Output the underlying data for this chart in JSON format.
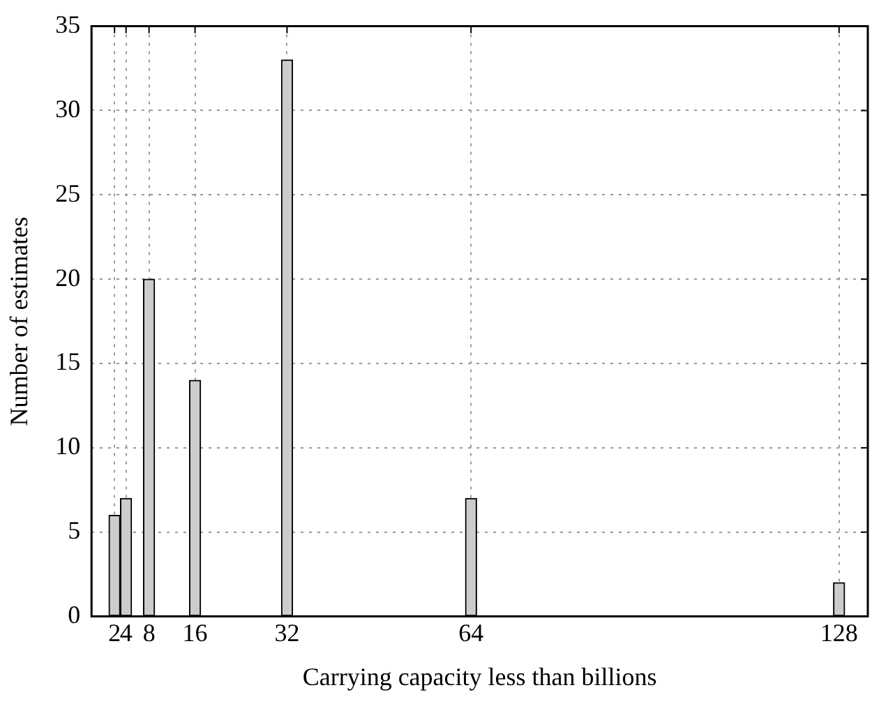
{
  "chart_data": {
    "type": "bar",
    "xlabel": "Carrying capacity less than billions",
    "ylabel": "Number of estimates",
    "x": [
      2,
      4,
      8,
      16,
      32,
      64,
      128
    ],
    "values": [
      6,
      7,
      20,
      14,
      33,
      7,
      2
    ],
    "color": "#cccccc",
    "xlim": [
      -2,
      133
    ],
    "xticks": [
      2,
      4,
      8,
      16,
      32,
      64,
      128
    ],
    "ylim": [
      0,
      35
    ],
    "yticks": [
      0,
      5,
      10,
      15,
      20,
      25,
      30,
      35
    ],
    "grid": true
  }
}
